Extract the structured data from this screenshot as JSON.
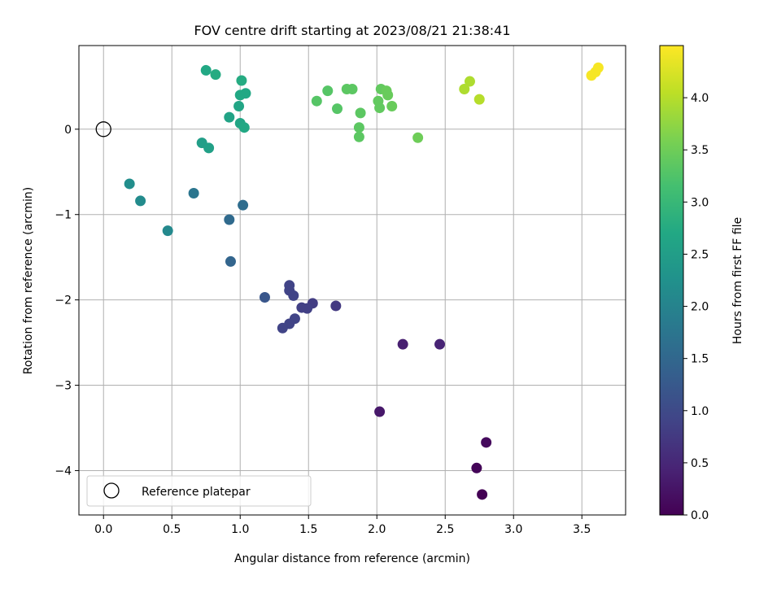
{
  "chart_data": {
    "type": "scatter",
    "title": "FOV centre drift starting at 2023/08/21 21:38:41",
    "xlabel": "Angular distance from reference (arcmin)",
    "ylabel": "Rotation from reference (arcmin)",
    "xlim": [
      -0.18,
      3.82
    ],
    "ylim": [
      -4.52,
      0.98
    ],
    "x_ticks": [
      0.0,
      0.5,
      1.0,
      1.5,
      2.0,
      2.5,
      3.0,
      3.5
    ],
    "x_tick_labels": [
      "0.0",
      "0.5",
      "1.0",
      "1.5",
      "2.0",
      "2.5",
      "3.0",
      "3.5"
    ],
    "y_ticks": [
      0,
      -1,
      -2,
      -3,
      -4
    ],
    "y_tick_labels": [
      "0",
      "−1",
      "−2",
      "−3",
      "−4"
    ],
    "grid": true,
    "legend": {
      "position": "lower-left",
      "entries": [
        "Reference platepar"
      ]
    },
    "colorbar": {
      "label": "Hours from first FF file",
      "colormap": "viridis",
      "range": [
        0.0,
        4.5
      ],
      "ticks": [
        0.0,
        0.5,
        1.0,
        1.5,
        2.0,
        2.5,
        3.0,
        3.5,
        4.0
      ],
      "tick_labels": [
        "0.0",
        "0.5",
        "1.0",
        "1.5",
        "2.0",
        "2.5",
        "3.0",
        "3.5",
        "4.0"
      ]
    },
    "reference": {
      "name": "Reference platepar",
      "x": 0.0,
      "y": 0.0
    },
    "points": [
      {
        "x": 2.77,
        "y": -4.28,
        "c": 0.0
      },
      {
        "x": 2.73,
        "y": -3.97,
        "c": 0.05
      },
      {
        "x": 2.8,
        "y": -3.67,
        "c": 0.12
      },
      {
        "x": 2.02,
        "y": -3.31,
        "c": 0.3
      },
      {
        "x": 2.19,
        "y": -2.52,
        "c": 0.4
      },
      {
        "x": 2.46,
        "y": -2.52,
        "c": 0.45
      },
      {
        "x": 1.7,
        "y": -2.07,
        "c": 0.75
      },
      {
        "x": 1.53,
        "y": -2.04,
        "c": 0.8
      },
      {
        "x": 1.49,
        "y": -2.1,
        "c": 0.85
      },
      {
        "x": 1.45,
        "y": -2.09,
        "c": 0.85
      },
      {
        "x": 1.39,
        "y": -1.95,
        "c": 0.9
      },
      {
        "x": 1.36,
        "y": -1.89,
        "c": 0.9
      },
      {
        "x": 1.36,
        "y": -1.83,
        "c": 0.9
      },
      {
        "x": 1.4,
        "y": -2.22,
        "c": 0.9
      },
      {
        "x": 1.36,
        "y": -2.28,
        "c": 0.9
      },
      {
        "x": 1.31,
        "y": -2.33,
        "c": 0.9
      },
      {
        "x": 1.18,
        "y": -1.97,
        "c": 1.2
      },
      {
        "x": 0.93,
        "y": -1.55,
        "c": 1.45
      },
      {
        "x": 0.92,
        "y": -1.06,
        "c": 1.55
      },
      {
        "x": 1.02,
        "y": -0.89,
        "c": 1.6
      },
      {
        "x": 0.66,
        "y": -0.75,
        "c": 1.75
      },
      {
        "x": 0.47,
        "y": -1.19,
        "c": 2.1
      },
      {
        "x": 0.27,
        "y": -0.84,
        "c": 2.15
      },
      {
        "x": 0.19,
        "y": -0.64,
        "c": 2.2
      },
      {
        "x": 0.72,
        "y": -0.16,
        "c": 2.5
      },
      {
        "x": 0.77,
        "y": -0.22,
        "c": 2.55
      },
      {
        "x": 0.92,
        "y": 0.14,
        "c": 2.6
      },
      {
        "x": 1.0,
        "y": 0.07,
        "c": 2.65
      },
      {
        "x": 1.03,
        "y": 0.02,
        "c": 2.7
      },
      {
        "x": 0.99,
        "y": 0.27,
        "c": 2.65
      },
      {
        "x": 1.0,
        "y": 0.4,
        "c": 2.7
      },
      {
        "x": 1.04,
        "y": 0.42,
        "c": 2.7
      },
      {
        "x": 1.01,
        "y": 0.57,
        "c": 2.75
      },
      {
        "x": 0.75,
        "y": 0.69,
        "c": 2.7
      },
      {
        "x": 0.82,
        "y": 0.64,
        "c": 2.75
      },
      {
        "x": 1.56,
        "y": 0.33,
        "c": 3.3
      },
      {
        "x": 1.64,
        "y": 0.45,
        "c": 3.3
      },
      {
        "x": 1.71,
        "y": 0.24,
        "c": 3.3
      },
      {
        "x": 1.78,
        "y": 0.47,
        "c": 3.35
      },
      {
        "x": 1.82,
        "y": 0.47,
        "c": 3.35
      },
      {
        "x": 1.87,
        "y": -0.09,
        "c": 3.35
      },
      {
        "x": 1.87,
        "y": 0.02,
        "c": 3.35
      },
      {
        "x": 1.88,
        "y": 0.19,
        "c": 3.35
      },
      {
        "x": 2.01,
        "y": 0.33,
        "c": 3.4
      },
      {
        "x": 2.02,
        "y": 0.25,
        "c": 3.4
      },
      {
        "x": 2.03,
        "y": 0.47,
        "c": 3.4
      },
      {
        "x": 2.07,
        "y": 0.45,
        "c": 3.45
      },
      {
        "x": 2.08,
        "y": 0.4,
        "c": 3.45
      },
      {
        "x": 2.11,
        "y": 0.27,
        "c": 3.45
      },
      {
        "x": 2.3,
        "y": -0.1,
        "c": 3.5
      },
      {
        "x": 2.64,
        "y": 0.47,
        "c": 3.95
      },
      {
        "x": 2.68,
        "y": 0.56,
        "c": 3.95
      },
      {
        "x": 2.75,
        "y": 0.35,
        "c": 4.0
      },
      {
        "x": 3.57,
        "y": 0.63,
        "c": 4.45
      },
      {
        "x": 3.6,
        "y": 0.67,
        "c": 4.45
      },
      {
        "x": 3.62,
        "y": 0.72,
        "c": 4.45
      }
    ]
  }
}
